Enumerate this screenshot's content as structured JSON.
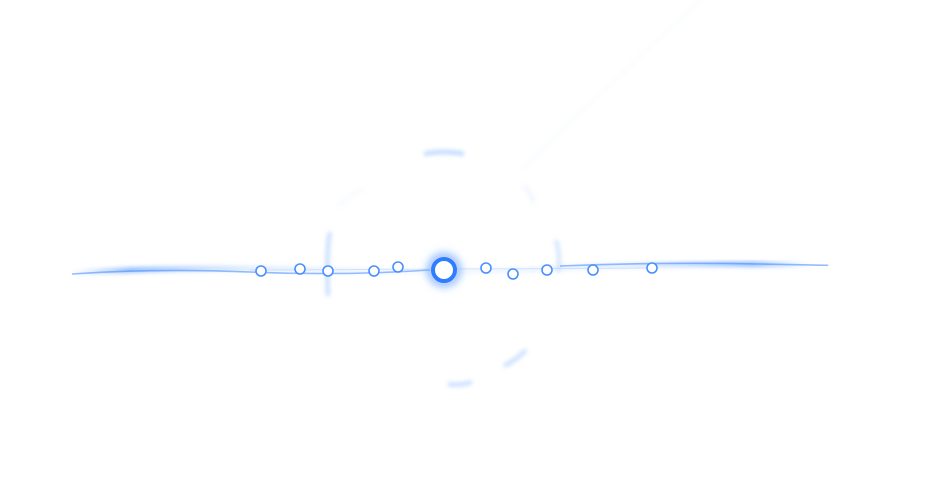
{
  "scene": {
    "type": "lens-flare-graphic",
    "background_color": "#ffffff",
    "accent_color": "#2f7dff",
    "glow_color": "#6fb0ff",
    "icons": [
      "flare-core-icon",
      "flare-ring-icon",
      "flare-streak-icon"
    ]
  }
}
